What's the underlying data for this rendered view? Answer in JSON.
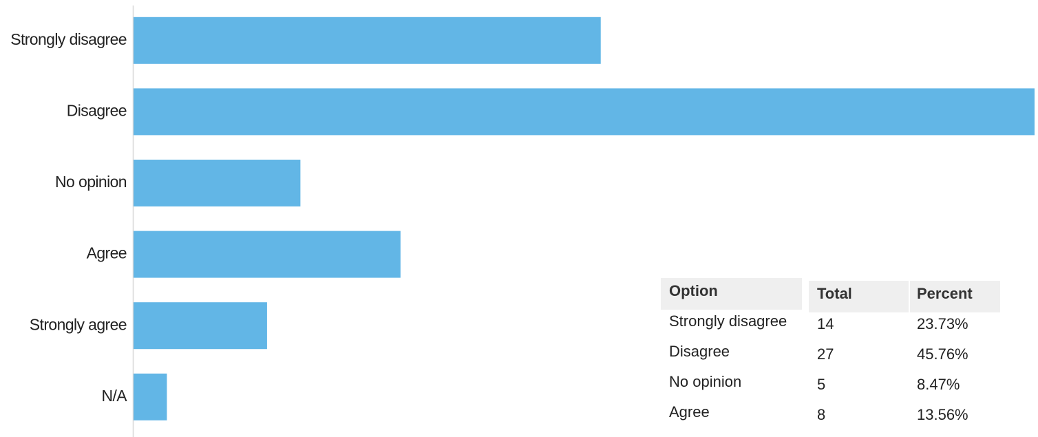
{
  "chart_data": {
    "type": "bar",
    "orientation": "horizontal",
    "categories": [
      "Strongly disagree",
      "Disagree",
      "No opinion",
      "Agree",
      "Strongly agree",
      "N/A"
    ],
    "values": [
      14,
      27,
      5,
      8,
      4,
      1
    ],
    "color": "#62b6e6",
    "xlim": [
      0,
      27
    ]
  },
  "table": {
    "header": [
      "Option",
      "Total",
      "Percent"
    ],
    "rows": [
      [
        "Strongly disagree",
        "14",
        "23.73%"
      ],
      [
        "Disagree",
        "27",
        "45.76%"
      ],
      [
        "No opinion",
        "5",
        "8.47%"
      ],
      [
        "Agree",
        "8",
        "13.56%"
      ]
    ]
  }
}
